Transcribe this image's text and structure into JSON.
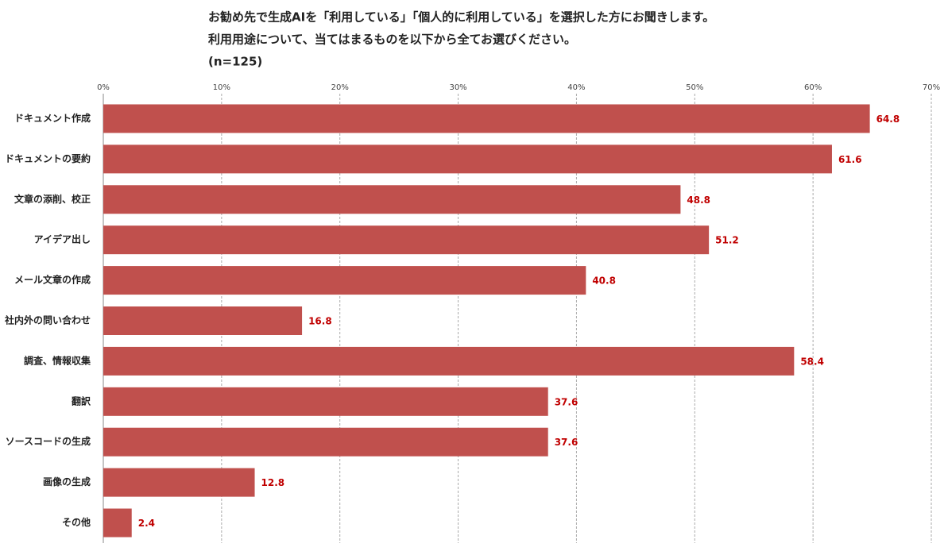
{
  "chart_data": {
    "type": "bar",
    "orientation": "horizontal",
    "title": [
      "お勧め先で生成AIを「利用している」「個人的に利用している」を選択した方にお聞きします。",
      "利用用途について、当てはまるものを以下から全てお選びください。",
      "(n=125)"
    ],
    "categories": [
      "ドキュメント作成",
      "ドキュメントの要約",
      "文章の添削、校正",
      "アイデア出し",
      "メール文章の作成",
      "社内外の問い合わせ",
      "調査、情報収集",
      "翻訳",
      "ソースコードの生成",
      "画像の生成",
      "その他"
    ],
    "values": [
      64.8,
      61.6,
      48.8,
      51.2,
      40.8,
      16.8,
      58.4,
      37.6,
      37.6,
      12.8,
      2.4
    ],
    "color": "#c0504d",
    "label_color": "#c00000",
    "xlim": [
      0,
      70
    ],
    "xticks": [
      {
        "value": 0,
        "label": "0%"
      },
      {
        "value": 10,
        "label": "10%"
      },
      {
        "value": 20,
        "label": "20%"
      },
      {
        "value": 30,
        "label": "30%"
      },
      {
        "value": 40,
        "label": "40%"
      },
      {
        "value": 50,
        "label": "50%"
      },
      {
        "value": 60,
        "label": "60%"
      },
      {
        "value": 70,
        "label": "70%"
      }
    ],
    "grid": true
  }
}
